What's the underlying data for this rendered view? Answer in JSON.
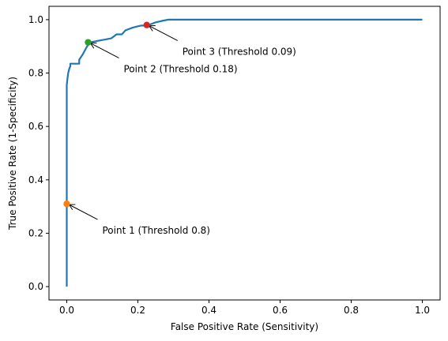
{
  "chart_data": {
    "type": "line",
    "xlabel": "False Positive Rate (Sensitivity)",
    "ylabel": "True Positive Rate (1-Specificity)",
    "xlim": [
      -0.05,
      1.05
    ],
    "ylim": [
      -0.05,
      1.05
    ],
    "xticks": [
      "0.0",
      "0.2",
      "0.4",
      "0.6",
      "0.8",
      "1.0"
    ],
    "yticks": [
      "0.0",
      "0.2",
      "0.4",
      "0.6",
      "0.8",
      "1.0"
    ],
    "grid": false,
    "legend": "none",
    "series": [
      {
        "color": "#1f77b4",
        "x": [
          0.0,
          0.0,
          0.0,
          0.0,
          0.002,
          0.004,
          0.006,
          0.008,
          0.01,
          0.01,
          0.035,
          0.035,
          0.045,
          0.055,
          0.065,
          0.085,
          0.105,
          0.125,
          0.14,
          0.155,
          0.165,
          0.175,
          0.185,
          0.2,
          0.21,
          0.225,
          0.23,
          0.24,
          0.25,
          0.26,
          0.27,
          0.285,
          0.3,
          0.5,
          0.7,
          1.0
        ],
        "y": [
          0.0,
          0.31,
          0.6,
          0.755,
          0.78,
          0.8,
          0.81,
          0.82,
          0.825,
          0.835,
          0.835,
          0.85,
          0.87,
          0.895,
          0.915,
          0.92,
          0.925,
          0.93,
          0.945,
          0.945,
          0.96,
          0.965,
          0.97,
          0.975,
          0.978,
          0.978,
          0.98,
          0.985,
          0.99,
          0.993,
          0.996,
          1.0,
          1.0,
          1.0,
          1.0,
          1.0
        ]
      }
    ],
    "points": [
      {
        "label": "Point 1 (Threshold 0.8)",
        "x": 0.0,
        "y": 0.31,
        "color": "#ff7f0e",
        "text_x": 0.1,
        "text_y": 0.21
      },
      {
        "label": "Point 2 (Threshold 0.18)",
        "x": 0.06,
        "y": 0.915,
        "color": "#2ca02c",
        "text_x": 0.16,
        "text_y": 0.815
      },
      {
        "label": "Point 3 (Threshold 0.09)",
        "x": 0.225,
        "y": 0.98,
        "color": "#d62728",
        "text_x": 0.325,
        "text_y": 0.88
      }
    ]
  }
}
